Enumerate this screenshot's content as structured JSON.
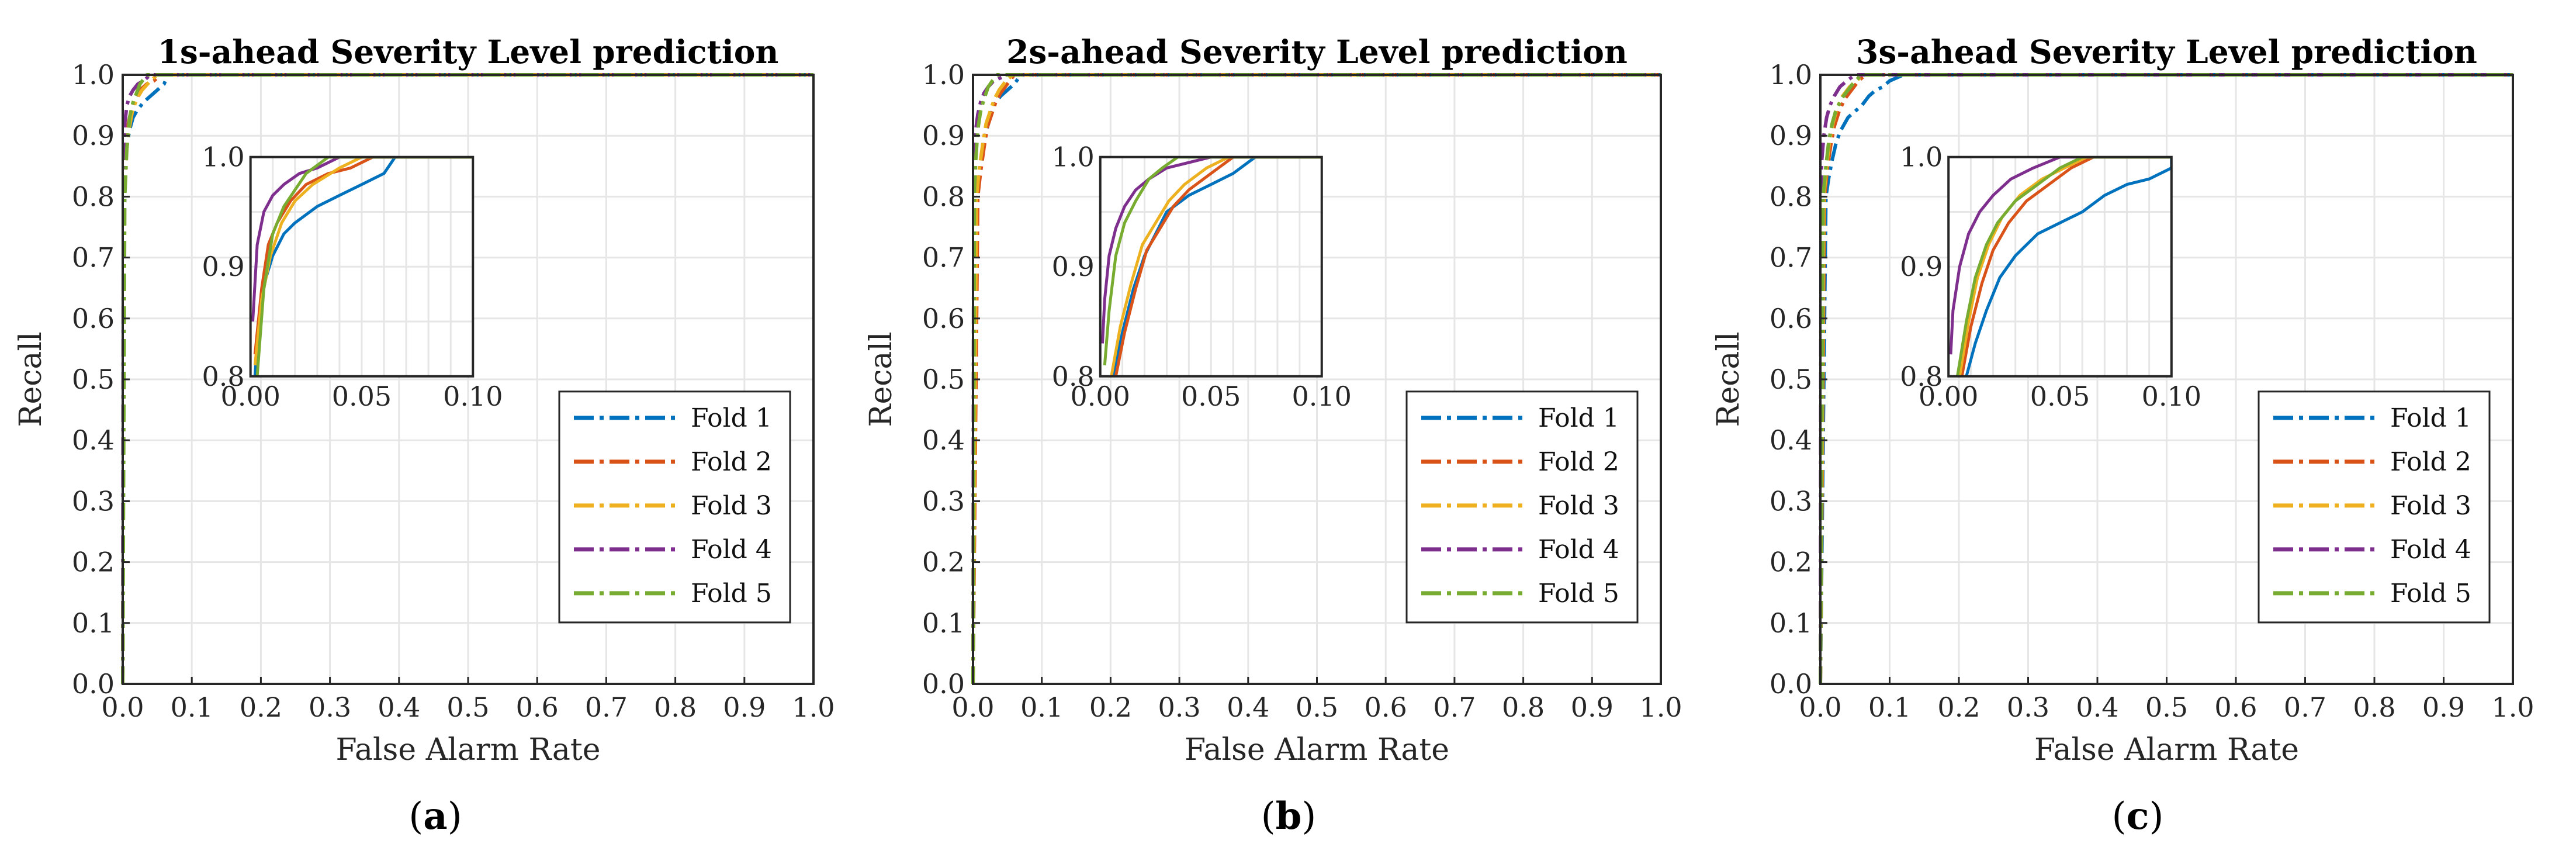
{
  "chart_data": [
    {
      "type": "line",
      "title": "1s-ahead Severity Level prediction",
      "caption": "a",
      "xlabel": "False Alarm Rate",
      "ylabel": "Recall",
      "xlim": [
        0,
        1
      ],
      "ylim": [
        0,
        1
      ],
      "xticks": [
        "0.0",
        "0.1",
        "0.2",
        "0.3",
        "0.4",
        "0.5",
        "0.6",
        "0.7",
        "0.8",
        "0.9",
        "1.0"
      ],
      "yticks": [
        "0.0",
        "0.1",
        "0.2",
        "0.3",
        "0.4",
        "0.5",
        "0.6",
        "0.7",
        "0.8",
        "0.9",
        "1.0"
      ],
      "grid": true,
      "legend": "bottom-right",
      "inset": {
        "xlim": [
          0,
          0.1
        ],
        "ylim": [
          0.8,
          1.0
        ],
        "xticks": [
          "0.00",
          "0.05",
          "0.10"
        ],
        "yticks": [
          "0.8",
          "0.9",
          "1.0"
        ]
      },
      "series": [
        {
          "name": "Fold 1",
          "color": "#0072BD",
          "x": [
            0,
            0.002,
            0.004,
            0.007,
            0.01,
            0.015,
            0.02,
            0.03,
            0.04,
            0.05,
            0.06,
            0.065,
            1.0
          ],
          "y": [
            0,
            0.8,
            0.86,
            0.89,
            0.91,
            0.93,
            0.94,
            0.955,
            0.965,
            0.975,
            0.985,
            1.0,
            1.0
          ]
        },
        {
          "name": "Fold 2",
          "color": "#D95319",
          "x": [
            0,
            0.002,
            0.005,
            0.008,
            0.012,
            0.018,
            0.025,
            0.035,
            0.045,
            0.055,
            1.0
          ],
          "y": [
            0,
            0.82,
            0.88,
            0.92,
            0.94,
            0.96,
            0.975,
            0.985,
            0.99,
            1.0,
            1.0
          ]
        },
        {
          "name": "Fold 3",
          "color": "#EDB120",
          "x": [
            0,
            0.002,
            0.005,
            0.009,
            0.014,
            0.02,
            0.028,
            0.04,
            0.05,
            1.0
          ],
          "y": [
            0,
            0.81,
            0.87,
            0.91,
            0.94,
            0.96,
            0.975,
            0.99,
            1.0,
            1.0
          ]
        },
        {
          "name": "Fold 4",
          "color": "#7E2F8E",
          "x": [
            0,
            0.001,
            0.003,
            0.006,
            0.01,
            0.015,
            0.022,
            0.03,
            0.04,
            1.0
          ],
          "y": [
            0,
            0.85,
            0.92,
            0.95,
            0.965,
            0.975,
            0.985,
            0.99,
            1.0,
            1.0
          ]
        },
        {
          "name": "Fold 5",
          "color": "#77AC30",
          "x": [
            0,
            0.003,
            0.006,
            0.01,
            0.015,
            0.02,
            0.025,
            0.035,
            1.0
          ],
          "y": [
            0,
            0.8,
            0.88,
            0.93,
            0.955,
            0.97,
            0.985,
            1.0,
            1.0
          ]
        }
      ]
    },
    {
      "type": "line",
      "title": "2s-ahead Severity Level prediction",
      "caption": "b",
      "xlabel": "False Alarm Rate",
      "ylabel": "Recall",
      "xlim": [
        0,
        1
      ],
      "ylim": [
        0,
        1
      ],
      "xticks": [
        "0.0",
        "0.1",
        "0.2",
        "0.3",
        "0.4",
        "0.5",
        "0.6",
        "0.7",
        "0.8",
        "0.9",
        "1.0"
      ],
      "yticks": [
        "0.0",
        "0.1",
        "0.2",
        "0.3",
        "0.4",
        "0.5",
        "0.6",
        "0.7",
        "0.8",
        "0.9",
        "1.0"
      ],
      "grid": true,
      "legend": "bottom-right",
      "inset": {
        "xlim": [
          0,
          0.1
        ],
        "ylim": [
          0.8,
          1.0
        ],
        "xticks": [
          "0.00",
          "0.05",
          "0.10"
        ],
        "yticks": [
          "0.8",
          "0.9",
          "1.0"
        ]
      },
      "series": [
        {
          "name": "Fold 1",
          "color": "#0072BD",
          "x": [
            0,
            0.006,
            0.01,
            0.015,
            0.02,
            0.025,
            0.03,
            0.04,
            0.05,
            0.06,
            0.07,
            1.0
          ],
          "y": [
            0,
            0.8,
            0.84,
            0.88,
            0.91,
            0.93,
            0.95,
            0.965,
            0.975,
            0.985,
            1.0,
            1.0
          ]
        },
        {
          "name": "Fold 2",
          "color": "#D95319",
          "x": [
            0,
            0.007,
            0.011,
            0.016,
            0.021,
            0.027,
            0.033,
            0.04,
            0.05,
            0.06,
            1.0
          ],
          "y": [
            0,
            0.8,
            0.84,
            0.88,
            0.915,
            0.935,
            0.955,
            0.97,
            0.985,
            1.0,
            1.0
          ]
        },
        {
          "name": "Fold 3",
          "color": "#EDB120",
          "x": [
            0,
            0.005,
            0.009,
            0.014,
            0.019,
            0.025,
            0.031,
            0.038,
            0.048,
            0.058,
            1.0
          ],
          "y": [
            0,
            0.8,
            0.845,
            0.885,
            0.92,
            0.94,
            0.96,
            0.975,
            0.99,
            1.0,
            1.0
          ]
        },
        {
          "name": "Fold 4",
          "color": "#7E2F8E",
          "x": [
            0,
            0.001,
            0.002,
            0.004,
            0.007,
            0.011,
            0.016,
            0.022,
            0.03,
            0.05,
            1.0
          ],
          "y": [
            0,
            0.83,
            0.87,
            0.91,
            0.935,
            0.955,
            0.97,
            0.98,
            0.99,
            1.0,
            1.0
          ]
        },
        {
          "name": "Fold 5",
          "color": "#77AC30",
          "x": [
            0,
            0.002,
            0.004,
            0.007,
            0.011,
            0.016,
            0.022,
            0.028,
            0.035,
            1.0
          ],
          "y": [
            0,
            0.81,
            0.86,
            0.91,
            0.94,
            0.96,
            0.98,
            0.99,
            1.0,
            1.0
          ]
        }
      ]
    },
    {
      "type": "line",
      "title": "3s-ahead Severity Level prediction",
      "caption": "c",
      "xlabel": "False Alarm Rate",
      "ylabel": "Recall",
      "xlim": [
        0,
        1
      ],
      "ylim": [
        0,
        1
      ],
      "xticks": [
        "0.0",
        "0.1",
        "0.2",
        "0.3",
        "0.4",
        "0.5",
        "0.6",
        "0.7",
        "0.8",
        "0.9",
        "1.0"
      ],
      "yticks": [
        "0.0",
        "0.1",
        "0.2",
        "0.3",
        "0.4",
        "0.5",
        "0.6",
        "0.7",
        "0.8",
        "0.9",
        "1.0"
      ],
      "grid": true,
      "legend": "bottom-right",
      "inset": {
        "xlim": [
          0,
          0.1
        ],
        "ylim": [
          0.8,
          1.0
        ],
        "xticks": [
          "0.00",
          "0.05",
          "0.10"
        ],
        "yticks": [
          "0.8",
          "0.9",
          "1.0"
        ]
      },
      "series": [
        {
          "name": "Fold 1",
          "color": "#0072BD",
          "x": [
            0,
            0.008,
            0.012,
            0.017,
            0.023,
            0.03,
            0.04,
            0.05,
            0.06,
            0.07,
            0.08,
            0.09,
            0.1,
            0.12,
            1.0
          ],
          "y": [
            0,
            0.8,
            0.83,
            0.86,
            0.89,
            0.91,
            0.93,
            0.94,
            0.95,
            0.965,
            0.975,
            0.98,
            0.99,
            1.0,
            1.0
          ]
        },
        {
          "name": "Fold 2",
          "color": "#D95319",
          "x": [
            0,
            0.006,
            0.01,
            0.015,
            0.02,
            0.027,
            0.035,
            0.045,
            0.055,
            0.065,
            1.0
          ],
          "y": [
            0,
            0.8,
            0.845,
            0.885,
            0.915,
            0.94,
            0.96,
            0.975,
            0.99,
            1.0,
            1.0
          ]
        },
        {
          "name": "Fold 3",
          "color": "#EDB120",
          "x": [
            0,
            0.005,
            0.009,
            0.013,
            0.018,
            0.024,
            0.032,
            0.042,
            0.052,
            0.062,
            1.0
          ],
          "y": [
            0,
            0.8,
            0.85,
            0.89,
            0.92,
            0.945,
            0.965,
            0.98,
            0.99,
            1.0,
            1.0
          ]
        },
        {
          "name": "Fold 4",
          "color": "#7E2F8E",
          "x": [
            0,
            0.001,
            0.002,
            0.005,
            0.009,
            0.014,
            0.02,
            0.028,
            0.038,
            0.05,
            1.0
          ],
          "y": [
            0,
            0.82,
            0.86,
            0.9,
            0.93,
            0.95,
            0.965,
            0.98,
            0.99,
            1.0,
            1.0
          ]
        },
        {
          "name": "Fold 5",
          "color": "#77AC30",
          "x": [
            0,
            0.004,
            0.008,
            0.012,
            0.017,
            0.022,
            0.03,
            0.04,
            0.05,
            0.06,
            1.0
          ],
          "y": [
            0,
            0.8,
            0.85,
            0.89,
            0.92,
            0.94,
            0.96,
            0.975,
            0.99,
            1.0,
            1.0
          ]
        }
      ]
    }
  ]
}
